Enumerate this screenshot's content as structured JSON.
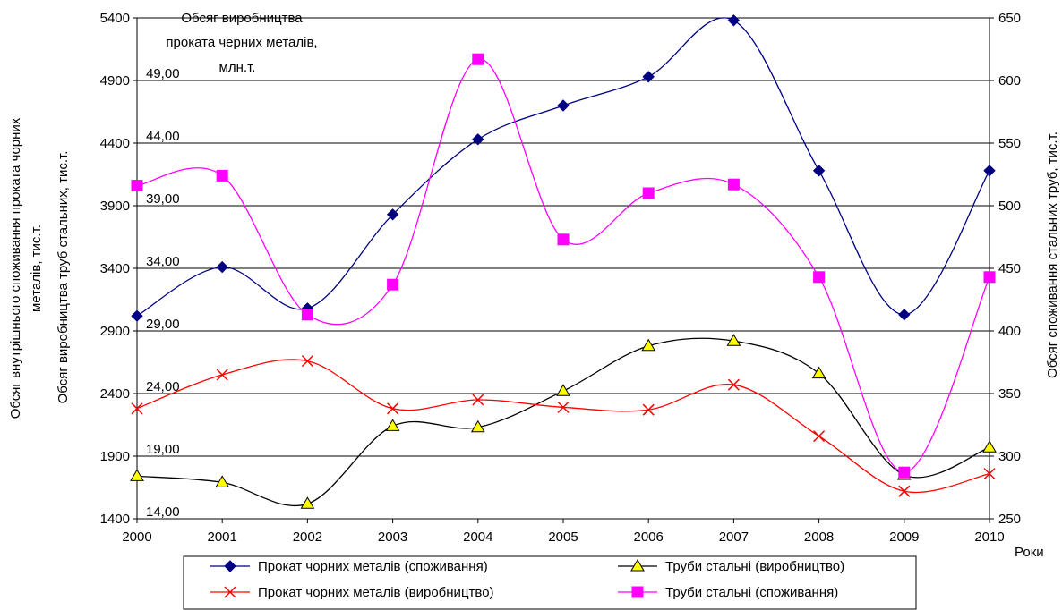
{
  "chart_data": {
    "type": "line",
    "x": [
      "2000",
      "2001",
      "2002",
      "2003",
      "2004",
      "2005",
      "2006",
      "2007",
      "2008",
      "2009",
      "2010"
    ],
    "x_unit_label": "Роки",
    "y_left": {
      "label_line1": "Обсяг внутрішнього споживання проката чорних",
      "label_line2": "металів, тис.т.",
      "ticks": [
        1400,
        1900,
        2400,
        2900,
        3400,
        3900,
        4400,
        4900,
        5400
      ],
      "range": [
        1400,
        5400
      ]
    },
    "y_left_inner": {
      "label": "Обсяг виробництва труб стальних, тис.т.",
      "ticks": [
        "14,00",
        "19,00",
        "24,00",
        "29,00",
        "34,00",
        "39,00",
        "44,00",
        "49,00"
      ],
      "values": [
        14,
        19,
        24,
        29,
        34,
        39,
        44,
        49
      ],
      "range": [
        14,
        54
      ]
    },
    "y_right": {
      "label": "Обсяг споживання стальних труб, тис.т.",
      "ticks": [
        250,
        300,
        350,
        400,
        450,
        500,
        550,
        600,
        650
      ],
      "range": [
        250,
        650
      ]
    },
    "inner_title": [
      "Обсяг виробництва",
      "проката черних металів,",
      "млн.т."
    ],
    "grid": true,
    "legend_position": "bottom",
    "series": [
      {
        "name": "Прокат чорних металів (споживання)",
        "axis": "left",
        "color": "#000080",
        "marker": "diamond",
        "values": [
          3020,
          3410,
          3080,
          3830,
          4430,
          4700,
          4930,
          5380,
          4180,
          3030,
          4180
        ]
      },
      {
        "name": "Труби стальні (виробництво)",
        "axis": "left",
        "color": "#000000",
        "marker": "triangle",
        "values": [
          1740,
          1690,
          1520,
          2140,
          2130,
          2420,
          2780,
          2820,
          2560,
          1750,
          1970
        ]
      },
      {
        "name": "Прокат чорних металів (виробництво)",
        "axis": "left",
        "color": "#ff0000",
        "marker": "x",
        "values": [
          2280,
          2550,
          2660,
          2280,
          2350,
          2290,
          2270,
          2470,
          2060,
          1620,
          1760
        ]
      },
      {
        "name": "Труби стальні (споживання)",
        "axis": "right",
        "color": "#ff00ff",
        "marker": "square",
        "values": [
          516,
          524,
          413,
          437,
          617,
          473,
          510,
          517,
          443,
          287,
          443
        ]
      }
    ],
    "legend_order": [
      0,
      1,
      2,
      3
    ]
  }
}
